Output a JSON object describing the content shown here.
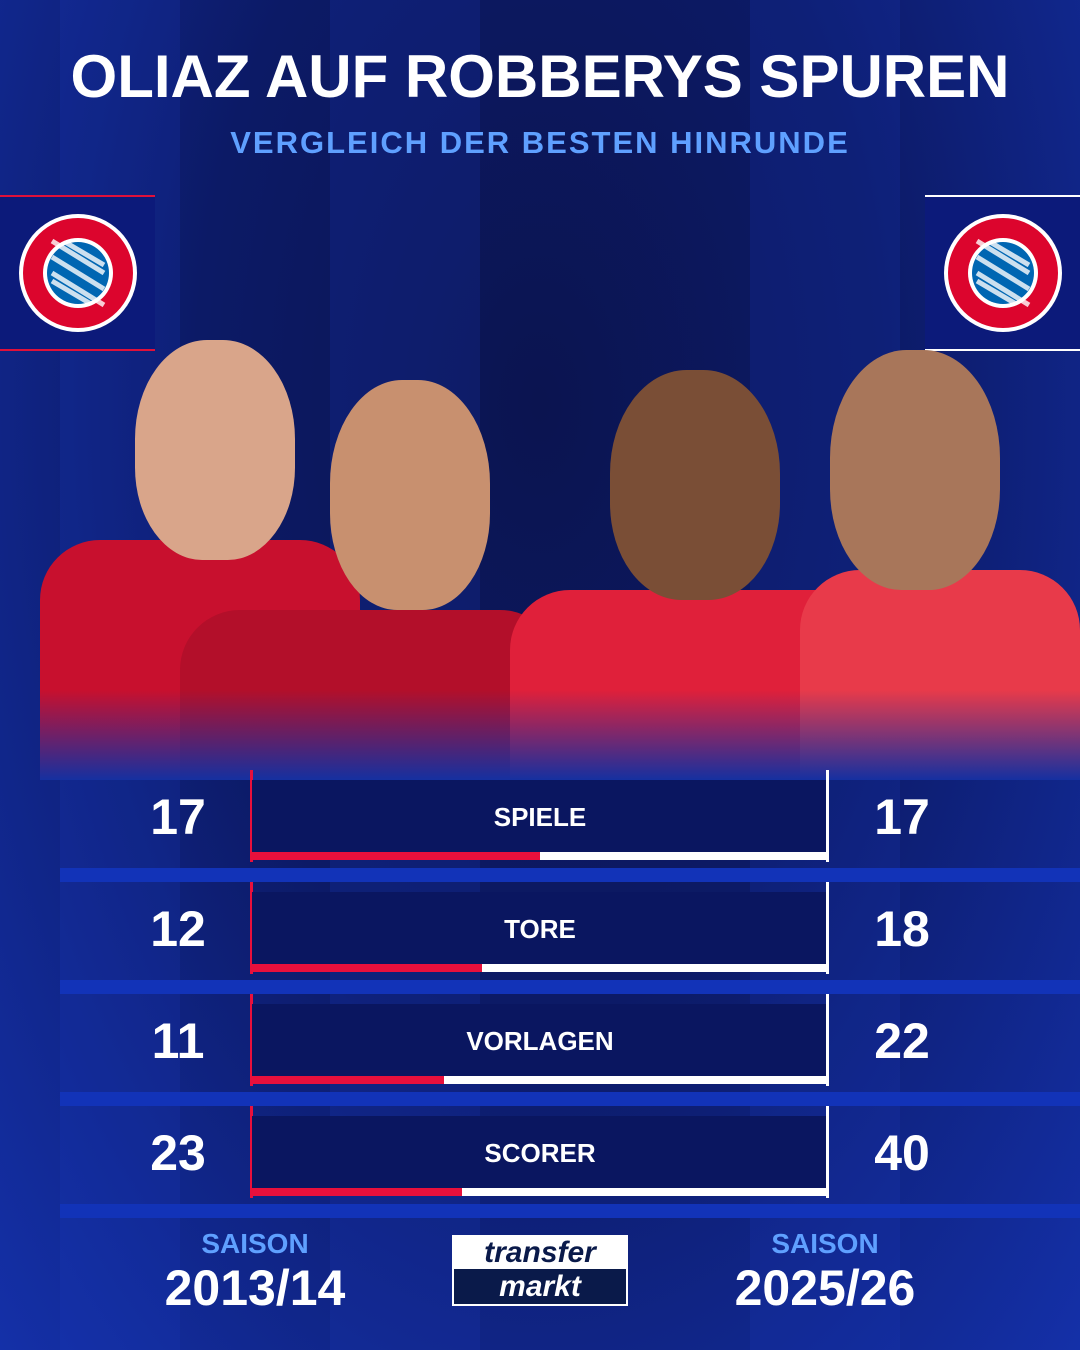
{
  "header": {
    "title": "OLIAZ AUF ROBBERYS SPUREN",
    "subtitle": "VERGLEICH DER BESTEN HINRUNDE"
  },
  "logos": {
    "club": "FC BAYERN MÜNCHEN"
  },
  "colors": {
    "left_accent": "#e8103c",
    "right_accent": "#ffffff",
    "subtitle": "#5fa0ff",
    "background": "#0c1a66"
  },
  "stats": [
    {
      "label": "SPIELE",
      "left": "17",
      "right": "17",
      "left_share": 0.5
    },
    {
      "label": "TORE",
      "left": "12",
      "right": "18",
      "left_share": 0.4
    },
    {
      "label": "VORLAGEN",
      "left": "11",
      "right": "22",
      "left_share": 0.333
    },
    {
      "label": "SCORER",
      "left": "23",
      "right": "40",
      "left_share": 0.365
    }
  ],
  "footer": {
    "left": {
      "label": "SAISON",
      "season": "2013/14"
    },
    "right": {
      "label": "SAISON",
      "season": "2025/26"
    },
    "brand_top": "transfer",
    "brand_bottom": "markt"
  }
}
